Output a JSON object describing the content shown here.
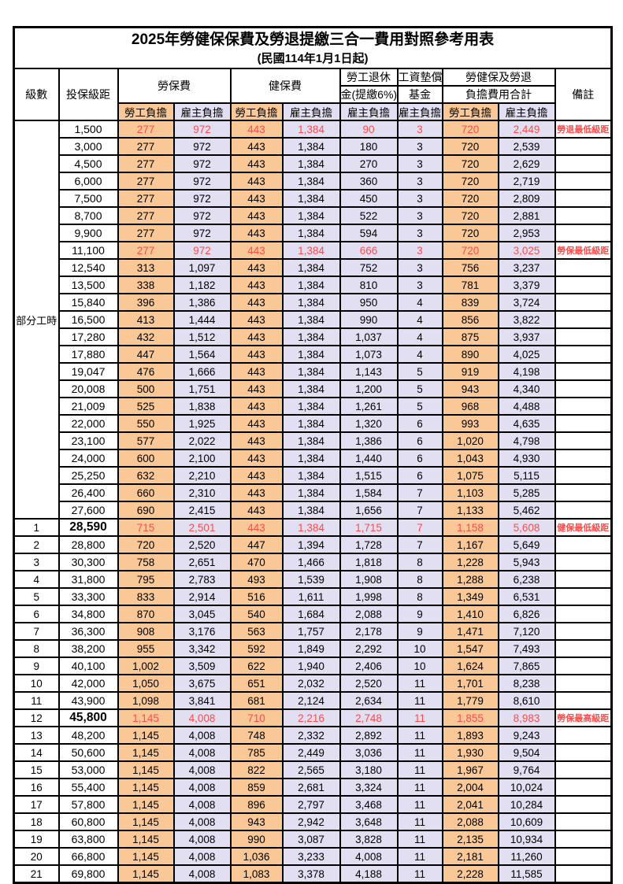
{
  "title": "2025年勞健保保費及勞退提繳三合一費用對照參考用表",
  "subtitle": "(民國114年1月1日起)",
  "colors": {
    "employee_column_bg": "#FAC896",
    "employer_column_bg": "#E2DFF2",
    "highlight_text": "#FF4B4B",
    "border": "#000000",
    "background": "#FFFFFF"
  },
  "header": {
    "level": "級數",
    "bracket": "投保級距",
    "labor": "勞保費",
    "health": "健保費",
    "pension_l1": "勞工退休",
    "pension_l2": "金(提繳6%)",
    "fund_l1": "工資墊償",
    "fund_l2": "基金",
    "total_l1": "勞健保及勞退",
    "total_l2": "負擔費用合計",
    "remark": "備註",
    "employee": "勞工負擔",
    "employer": "雇主負擔"
  },
  "part_time_label": "部分工時",
  "rows": [
    {
      "level": "",
      "bracket": "1,500",
      "values": [
        "277",
        "972",
        "443",
        "1,384",
        "90",
        "3",
        "720",
        "2,449"
      ],
      "note": "勞退最低級距",
      "red": true,
      "big": false
    },
    {
      "level": "",
      "bracket": "3,000",
      "values": [
        "277",
        "972",
        "443",
        "1,384",
        "180",
        "3",
        "720",
        "2,539"
      ],
      "note": "",
      "red": false,
      "big": false
    },
    {
      "level": "",
      "bracket": "4,500",
      "values": [
        "277",
        "972",
        "443",
        "1,384",
        "270",
        "3",
        "720",
        "2,629"
      ],
      "note": "",
      "red": false,
      "big": false
    },
    {
      "level": "",
      "bracket": "6,000",
      "values": [
        "277",
        "972",
        "443",
        "1,384",
        "360",
        "3",
        "720",
        "2,719"
      ],
      "note": "",
      "red": false,
      "big": false
    },
    {
      "level": "",
      "bracket": "7,500",
      "values": [
        "277",
        "972",
        "443",
        "1,384",
        "450",
        "3",
        "720",
        "2,809"
      ],
      "note": "",
      "red": false,
      "big": false
    },
    {
      "level": "",
      "bracket": "8,700",
      "values": [
        "277",
        "972",
        "443",
        "1,384",
        "522",
        "3",
        "720",
        "2,881"
      ],
      "note": "",
      "red": false,
      "big": false
    },
    {
      "level": "",
      "bracket": "9,900",
      "values": [
        "277",
        "972",
        "443",
        "1,384",
        "594",
        "3",
        "720",
        "2,953"
      ],
      "note": "",
      "red": false,
      "big": false
    },
    {
      "level": "",
      "bracket": "11,100",
      "values": [
        "277",
        "972",
        "443",
        "1,384",
        "666",
        "3",
        "720",
        "3,025"
      ],
      "note": "勞保最低級距",
      "red": true,
      "big": false
    },
    {
      "level": "",
      "bracket": "12,540",
      "values": [
        "313",
        "1,097",
        "443",
        "1,384",
        "752",
        "3",
        "756",
        "3,237"
      ],
      "note": "",
      "red": false,
      "big": false
    },
    {
      "level": "",
      "bracket": "13,500",
      "values": [
        "338",
        "1,182",
        "443",
        "1,384",
        "810",
        "3",
        "781",
        "3,379"
      ],
      "note": "",
      "red": false,
      "big": false
    },
    {
      "level": "",
      "bracket": "15,840",
      "values": [
        "396",
        "1,386",
        "443",
        "1,384",
        "950",
        "4",
        "839",
        "3,724"
      ],
      "note": "",
      "red": false,
      "big": false
    },
    {
      "level": "",
      "bracket": "16,500",
      "values": [
        "413",
        "1,444",
        "443",
        "1,384",
        "990",
        "4",
        "856",
        "3,822"
      ],
      "note": "",
      "red": false,
      "big": false
    },
    {
      "level": "",
      "bracket": "17,280",
      "values": [
        "432",
        "1,512",
        "443",
        "1,384",
        "1,037",
        "4",
        "875",
        "3,937"
      ],
      "note": "",
      "red": false,
      "big": false
    },
    {
      "level": "",
      "bracket": "17,880",
      "values": [
        "447",
        "1,564",
        "443",
        "1,384",
        "1,073",
        "4",
        "890",
        "4,025"
      ],
      "note": "",
      "red": false,
      "big": false
    },
    {
      "level": "",
      "bracket": "19,047",
      "values": [
        "476",
        "1,666",
        "443",
        "1,384",
        "1,143",
        "5",
        "919",
        "4,198"
      ],
      "note": "",
      "red": false,
      "big": false
    },
    {
      "level": "",
      "bracket": "20,008",
      "values": [
        "500",
        "1,751",
        "443",
        "1,384",
        "1,200",
        "5",
        "943",
        "4,340"
      ],
      "note": "",
      "red": false,
      "big": false
    },
    {
      "level": "",
      "bracket": "21,009",
      "values": [
        "525",
        "1,838",
        "443",
        "1,384",
        "1,261",
        "5",
        "968",
        "4,488"
      ],
      "note": "",
      "red": false,
      "big": false
    },
    {
      "level": "",
      "bracket": "22,000",
      "values": [
        "550",
        "1,925",
        "443",
        "1,384",
        "1,320",
        "6",
        "993",
        "4,635"
      ],
      "note": "",
      "red": false,
      "big": false
    },
    {
      "level": "",
      "bracket": "23,100",
      "values": [
        "577",
        "2,022",
        "443",
        "1,384",
        "1,386",
        "6",
        "1,020",
        "4,798"
      ],
      "note": "",
      "red": false,
      "big": false
    },
    {
      "level": "",
      "bracket": "24,000",
      "values": [
        "600",
        "2,100",
        "443",
        "1,384",
        "1,440",
        "6",
        "1,043",
        "4,930"
      ],
      "note": "",
      "red": false,
      "big": false
    },
    {
      "level": "",
      "bracket": "25,250",
      "values": [
        "632",
        "2,210",
        "443",
        "1,384",
        "1,515",
        "6",
        "1,075",
        "5,115"
      ],
      "note": "",
      "red": false,
      "big": false
    },
    {
      "level": "",
      "bracket": "26,400",
      "values": [
        "660",
        "2,310",
        "443",
        "1,384",
        "1,584",
        "7",
        "1,103",
        "5,285"
      ],
      "note": "",
      "red": false,
      "big": false
    },
    {
      "level": "",
      "bracket": "27,600",
      "values": [
        "690",
        "2,415",
        "443",
        "1,384",
        "1,656",
        "7",
        "1,133",
        "5,462"
      ],
      "note": "",
      "red": false,
      "big": false
    },
    {
      "level": "1",
      "bracket": "28,590",
      "values": [
        "715",
        "2,501",
        "443",
        "1,384",
        "1,715",
        "7",
        "1,158",
        "5,608"
      ],
      "note": "健保最低級距",
      "red": true,
      "big": true
    },
    {
      "level": "2",
      "bracket": "28,800",
      "values": [
        "720",
        "2,520",
        "447",
        "1,394",
        "1,728",
        "7",
        "1,167",
        "5,649"
      ],
      "note": "",
      "red": false,
      "big": false
    },
    {
      "level": "3",
      "bracket": "30,300",
      "values": [
        "758",
        "2,651",
        "470",
        "1,466",
        "1,818",
        "8",
        "1,228",
        "5,943"
      ],
      "note": "",
      "red": false,
      "big": false
    },
    {
      "level": "4",
      "bracket": "31,800",
      "values": [
        "795",
        "2,783",
        "493",
        "1,539",
        "1,908",
        "8",
        "1,288",
        "6,238"
      ],
      "note": "",
      "red": false,
      "big": false
    },
    {
      "level": "5",
      "bracket": "33,300",
      "values": [
        "833",
        "2,914",
        "516",
        "1,611",
        "1,998",
        "8",
        "1,349",
        "6,531"
      ],
      "note": "",
      "red": false,
      "big": false
    },
    {
      "level": "6",
      "bracket": "34,800",
      "values": [
        "870",
        "3,045",
        "540",
        "1,684",
        "2,088",
        "9",
        "1,410",
        "6,826"
      ],
      "note": "",
      "red": false,
      "big": false
    },
    {
      "level": "7",
      "bracket": "36,300",
      "values": [
        "908",
        "3,176",
        "563",
        "1,757",
        "2,178",
        "9",
        "1,471",
        "7,120"
      ],
      "note": "",
      "red": false,
      "big": false
    },
    {
      "level": "8",
      "bracket": "38,200",
      "values": [
        "955",
        "3,342",
        "592",
        "1,849",
        "2,292",
        "10",
        "1,547",
        "7,493"
      ],
      "note": "",
      "red": false,
      "big": false
    },
    {
      "level": "9",
      "bracket": "40,100",
      "values": [
        "1,002",
        "3,509",
        "622",
        "1,940",
        "2,406",
        "10",
        "1,624",
        "7,865"
      ],
      "note": "",
      "red": false,
      "big": false
    },
    {
      "level": "10",
      "bracket": "42,000",
      "values": [
        "1,050",
        "3,675",
        "651",
        "2,032",
        "2,520",
        "11",
        "1,701",
        "8,238"
      ],
      "note": "",
      "red": false,
      "big": false
    },
    {
      "level": "11",
      "bracket": "43,900",
      "values": [
        "1,098",
        "3,841",
        "681",
        "2,124",
        "2,634",
        "11",
        "1,779",
        "8,610"
      ],
      "note": "",
      "red": false,
      "big": false
    },
    {
      "level": "12",
      "bracket": "45,800",
      "values": [
        "1,145",
        "4,008",
        "710",
        "2,216",
        "2,748",
        "11",
        "1,855",
        "8,983"
      ],
      "note": "勞保最高級距",
      "red": true,
      "big": true
    },
    {
      "level": "13",
      "bracket": "48,200",
      "values": [
        "1,145",
        "4,008",
        "748",
        "2,332",
        "2,892",
        "11",
        "1,893",
        "9,243"
      ],
      "note": "",
      "red": false,
      "big": false
    },
    {
      "level": "14",
      "bracket": "50,600",
      "values": [
        "1,145",
        "4,008",
        "785",
        "2,449",
        "3,036",
        "11",
        "1,930",
        "9,504"
      ],
      "note": "",
      "red": false,
      "big": false
    },
    {
      "level": "15",
      "bracket": "53,000",
      "values": [
        "1,145",
        "4,008",
        "822",
        "2,565",
        "3,180",
        "11",
        "1,967",
        "9,764"
      ],
      "note": "",
      "red": false,
      "big": false
    },
    {
      "level": "16",
      "bracket": "55,400",
      "values": [
        "1,145",
        "4,008",
        "859",
        "2,681",
        "3,324",
        "11",
        "2,004",
        "10,024"
      ],
      "note": "",
      "red": false,
      "big": false
    },
    {
      "level": "17",
      "bracket": "57,800",
      "values": [
        "1,145",
        "4,008",
        "896",
        "2,797",
        "3,468",
        "11",
        "2,041",
        "10,284"
      ],
      "note": "",
      "red": false,
      "big": false
    },
    {
      "level": "18",
      "bracket": "60,800",
      "values": [
        "1,145",
        "4,008",
        "943",
        "2,942",
        "3,648",
        "11",
        "2,088",
        "10,609"
      ],
      "note": "",
      "red": false,
      "big": false
    },
    {
      "level": "19",
      "bracket": "63,800",
      "values": [
        "1,145",
        "4,008",
        "990",
        "3,087",
        "3,828",
        "11",
        "2,135",
        "10,934"
      ],
      "note": "",
      "red": false,
      "big": false
    },
    {
      "level": "20",
      "bracket": "66,800",
      "values": [
        "1,145",
        "4,008",
        "1,036",
        "3,233",
        "4,008",
        "11",
        "2,181",
        "11,260"
      ],
      "note": "",
      "red": false,
      "big": false
    },
    {
      "level": "21",
      "bracket": "69,800",
      "values": [
        "1,145",
        "4,008",
        "1,083",
        "3,378",
        "4,188",
        "11",
        "2,228",
        "11,585"
      ],
      "note": "",
      "red": false,
      "big": false
    }
  ]
}
